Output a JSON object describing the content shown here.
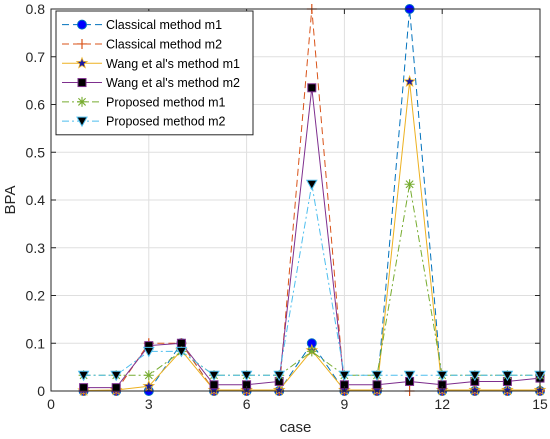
{
  "chart_data": {
    "type": "line",
    "title": "",
    "xlabel": "case",
    "ylabel": "BPA",
    "xlim": [
      0,
      15
    ],
    "ylim": [
      0,
      0.8
    ],
    "xticks": [
      0,
      3,
      6,
      9,
      12,
      15
    ],
    "yticks": [
      0,
      0.1,
      0.2,
      0.3,
      0.4,
      0.5,
      0.6,
      0.7,
      0.8
    ],
    "xtick_labels": [
      "0",
      "3",
      "6",
      "9",
      "12",
      "15"
    ],
    "ytick_labels": [
      "0",
      "0.1",
      "0.2",
      "0.3",
      "0.4",
      "0.5",
      "0.6",
      "0.7",
      "0.8"
    ],
    "grid": true,
    "legend_position": "top-left",
    "x": [
      1,
      2,
      3,
      4,
      5,
      6,
      7,
      8,
      9,
      10,
      11,
      12,
      13,
      14,
      15
    ],
    "series": [
      {
        "name": "Classical method m1",
        "color": "#0072BD",
        "dash": "7,4",
        "marker": "circle",
        "values": [
          0,
          0,
          0,
          0.1,
          0,
          0,
          0,
          0.1,
          0,
          0,
          0.8,
          0,
          0,
          0,
          0
        ]
      },
      {
        "name": "Classical method m2",
        "color": "#D95319",
        "dash": "7,4",
        "marker": "plus",
        "values": [
          0,
          0,
          0.1,
          0.1,
          0,
          0,
          0,
          0.8,
          0,
          0,
          0,
          0,
          0,
          0,
          0
        ]
      },
      {
        "name": "Wang et al's method m1",
        "color": "#EDB120",
        "dash": "",
        "marker": "star",
        "values": [
          0.001,
          0.002,
          0.01,
          0.085,
          0.002,
          0.002,
          0.002,
          0.085,
          0.002,
          0.002,
          0.648,
          0.002,
          0.002,
          0.002,
          0.002
        ]
      },
      {
        "name": "Wang et al's method m2",
        "color": "#7E2F8E",
        "dash": "",
        "marker": "square",
        "values": [
          0.007,
          0.007,
          0.095,
          0.1,
          0.013,
          0.013,
          0.02,
          0.635,
          0.013,
          0.013,
          0.02,
          0.013,
          0.02,
          0.02,
          0.027
        ]
      },
      {
        "name": "Proposed method m1",
        "color": "#77AC30",
        "dash": "7,3,2,3",
        "marker": "asterisk",
        "values": [
          0.033,
          0.033,
          0.033,
          0.083,
          0.033,
          0.033,
          0.033,
          0.083,
          0.033,
          0.033,
          0.433,
          0.033,
          0.033,
          0.033,
          0.033
        ]
      },
      {
        "name": "Proposed method m2",
        "color": "#4DBEEE",
        "dash": "7,3,2,3",
        "marker": "triangle-down",
        "values": [
          0.033,
          0.033,
          0.083,
          0.083,
          0.033,
          0.033,
          0.033,
          0.433,
          0.033,
          0.033,
          0.033,
          0.033,
          0.033,
          0.033,
          0.033
        ]
      }
    ]
  }
}
